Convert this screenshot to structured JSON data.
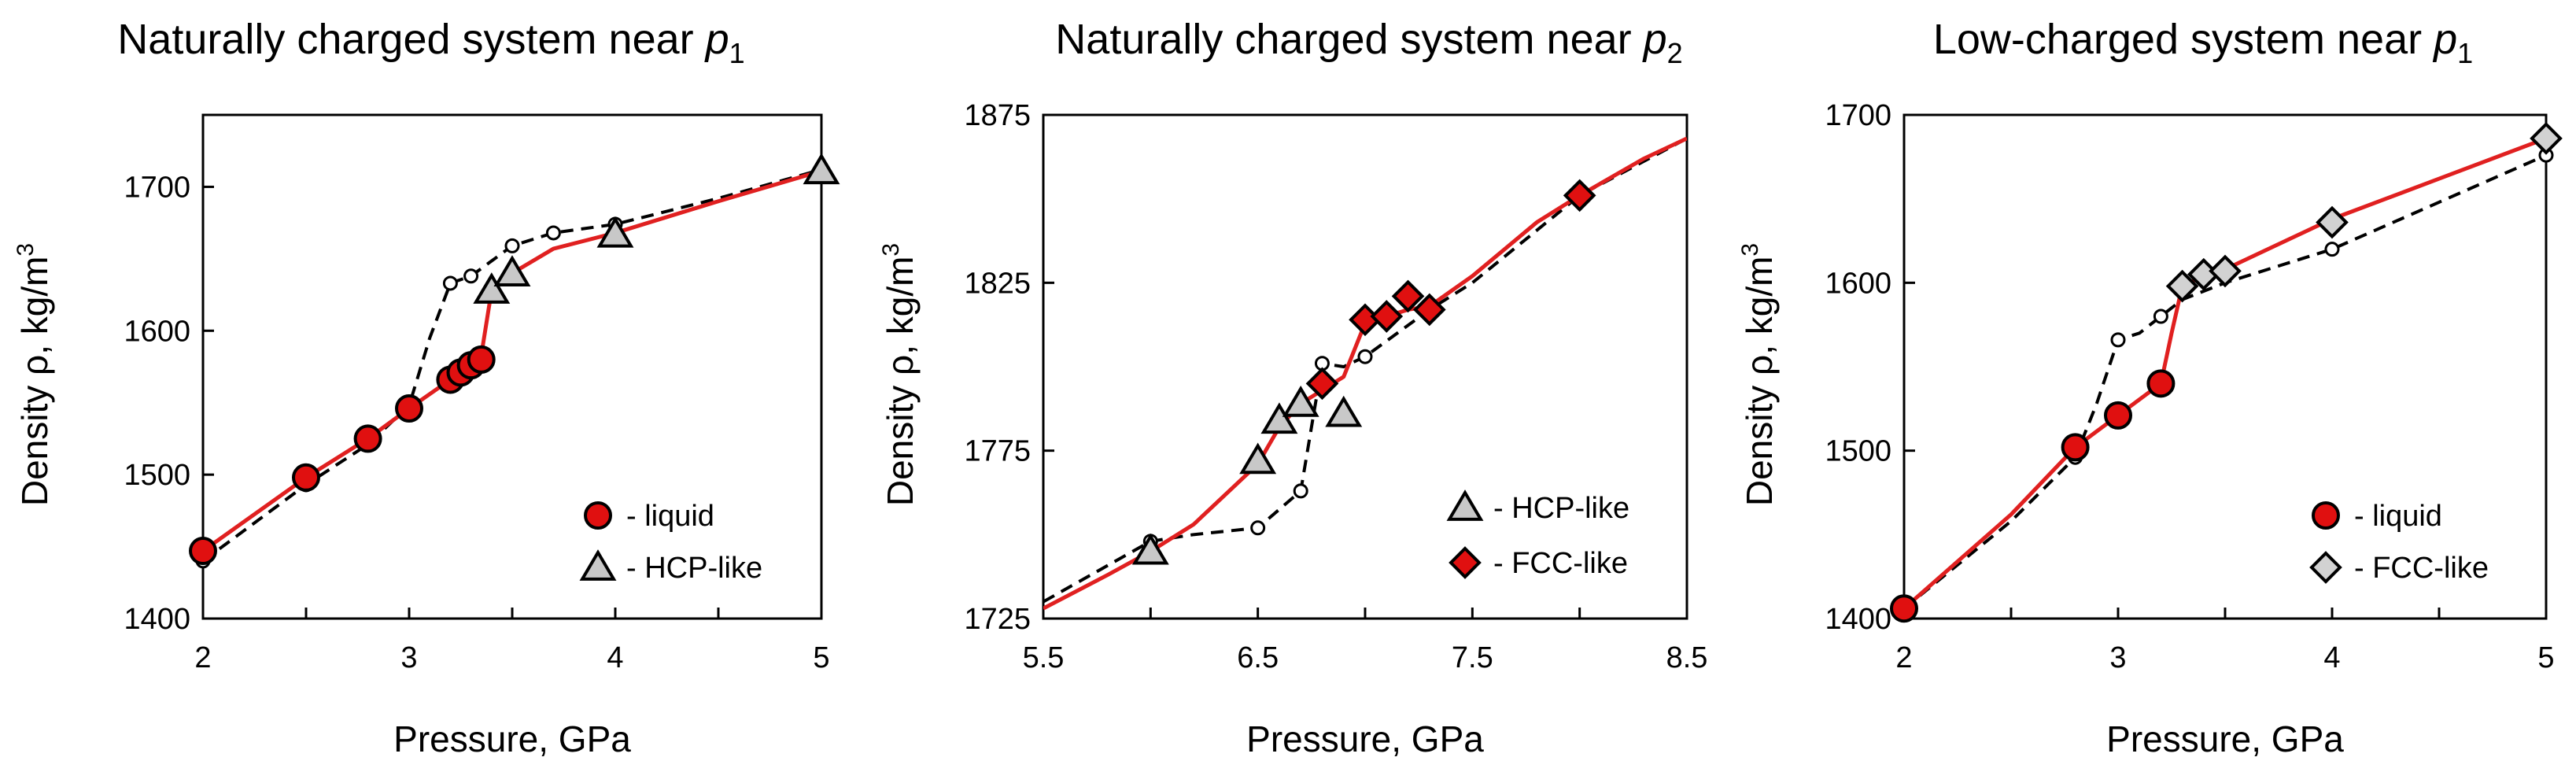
{
  "colors": {
    "fit_line": "#e02020",
    "dashed_line": "#000000",
    "liquid_marker": "#e01010",
    "hcp_marker": "#c8c8c8",
    "fcc_marker_red": "#e01010",
    "fcc_marker_gray": "#d2d2d2"
  },
  "chart_data": [
    {
      "type": "scatter",
      "title": "Naturally charged system near",
      "title_symbol": "p",
      "title_subscript": "1",
      "xlabel": "Pressure, GPa",
      "ylabel": "Density ρ, kg/m",
      "ylabel_sup": "3",
      "xlim": [
        2,
        5
      ],
      "ylim": [
        1400,
        1750
      ],
      "xticks": [
        2,
        3,
        4,
        5
      ],
      "xtick_labels": [
        "2",
        "3",
        "4",
        "5"
      ],
      "xminor": [
        2.5,
        3.5,
        4.5
      ],
      "yticks": [
        1400,
        1500,
        1600,
        1700
      ],
      "ytick_labels": [
        "1400",
        "1500",
        "1600",
        "1700"
      ],
      "legend": [
        {
          "marker": "circle",
          "color": "#e01010",
          "label": "- liquid"
        },
        {
          "marker": "triangle",
          "color": "#c8c8c8",
          "label": "- HCP-like"
        }
      ],
      "fit_line": {
        "x": [
          2,
          2.5,
          2.8,
          3.0,
          3.2,
          3.3,
          3.35,
          3.4,
          3.5,
          3.7,
          4.0,
          4.5,
          5.0
        ],
        "y": [
          1447,
          1498,
          1525,
          1546,
          1566,
          1577,
          1583,
          1628,
          1640,
          1657,
          1668,
          1690,
          1711
        ]
      },
      "dashed_line": {
        "x": [
          2,
          2.5,
          2.8,
          3.0,
          3.1,
          3.2,
          3.3,
          3.5,
          3.7,
          4.0,
          4.5,
          5.0
        ],
        "y": [
          1440,
          1493,
          1521,
          1548,
          1595,
          1633,
          1638,
          1659,
          1668,
          1674,
          1692,
          1712
        ]
      },
      "dashed_points": {
        "x": [
          2,
          2.5,
          2.8,
          3.2,
          3.3,
          3.5,
          3.7,
          4.0
        ],
        "y": [
          1440,
          1493,
          1521,
          1633,
          1638,
          1659,
          1668,
          1674
        ]
      },
      "series": [
        {
          "name": "liquid",
          "marker": "circle",
          "color": "#e01010",
          "x": [
            2,
            2.5,
            2.8,
            3.0,
            3.2,
            3.25,
            3.3,
            3.35
          ],
          "y": [
            1447,
            1498,
            1525,
            1546,
            1566,
            1571,
            1576,
            1580
          ]
        },
        {
          "name": "HCP-like",
          "marker": "triangle",
          "color": "#c8c8c8",
          "x": [
            3.4,
            3.5,
            4.0,
            5.0
          ],
          "y": [
            1628,
            1640,
            1667,
            1711
          ]
        }
      ]
    },
    {
      "type": "scatter",
      "title": "Naturally charged system near",
      "title_symbol": "p",
      "title_subscript": "2",
      "xlabel": "Pressure, GPa",
      "ylabel": "Density ρ, kg/m",
      "ylabel_sup": "3",
      "xlim": [
        5.5,
        8.5
      ],
      "ylim": [
        1725,
        1875
      ],
      "xticks": [
        5.5,
        6.5,
        7.5,
        8.5
      ],
      "xtick_labels": [
        "5.5",
        "6.5",
        "7.5",
        "8.5"
      ],
      "xminor": [
        6.0,
        7.0,
        8.0
      ],
      "yticks": [
        1725,
        1775,
        1825,
        1875
      ],
      "ytick_labels": [
        "1725",
        "1775",
        "1825",
        "1875"
      ],
      "legend": [
        {
          "marker": "triangle",
          "color": "#c8c8c8",
          "label": "- HCP-like"
        },
        {
          "marker": "diamond",
          "color": "#e01010",
          "label": "- FCC-like"
        }
      ],
      "fit_line": {
        "x": [
          5.5,
          5.8,
          6.0,
          6.2,
          6.5,
          6.6,
          6.7,
          6.8,
          6.9,
          7.0,
          7.1,
          7.2,
          7.3,
          7.5,
          7.8,
          8.0,
          8.3,
          8.5
        ],
        "y": [
          1728,
          1738,
          1745,
          1753,
          1771,
          1782,
          1789,
          1793,
          1797,
          1813,
          1815,
          1817,
          1818,
          1827,
          1843,
          1851,
          1862,
          1868
        ]
      },
      "dashed_line": {
        "x": [
          5.5,
          6.0,
          6.2,
          6.5,
          6.7,
          6.8,
          6.9,
          7.0,
          7.3,
          7.5,
          8.0,
          8.5
        ],
        "y": [
          1730,
          1748,
          1750,
          1752,
          1763,
          1801,
          1800,
          1803,
          1817,
          1825,
          1851,
          1868
        ]
      },
      "dashed_points": {
        "x": [
          6.0,
          6.5,
          6.7,
          6.8,
          7.0
        ],
        "y": [
          1748,
          1752,
          1763,
          1801,
          1803
        ]
      },
      "series": [
        {
          "name": "HCP-like",
          "marker": "triangle",
          "color": "#c8c8c8",
          "x": [
            6.0,
            6.5,
            6.6,
            6.7,
            6.9
          ],
          "y": [
            1745,
            1772,
            1784,
            1789,
            1786
          ]
        },
        {
          "name": "FCC-like",
          "marker": "diamond",
          "color": "#e01010",
          "x": [
            6.8,
            7.0,
            7.1,
            7.2,
            7.3,
            8.0
          ],
          "y": [
            1795,
            1814,
            1815,
            1821,
            1817,
            1851
          ]
        }
      ]
    },
    {
      "type": "scatter",
      "title": "Low-charged system near",
      "title_symbol": "p",
      "title_subscript": "1",
      "xlabel": "Pressure, GPa",
      "ylabel": "Density ρ, kg/m",
      "ylabel_sup": "3",
      "xlim": [
        2,
        5
      ],
      "ylim": [
        1400,
        1700
      ],
      "xticks": [
        2,
        3,
        4,
        5
      ],
      "xtick_labels": [
        "2",
        "3",
        "4",
        "5"
      ],
      "xminor": [
        2.5,
        3.5,
        4.5
      ],
      "yticks": [
        1400,
        1500,
        1600,
        1700
      ],
      "ytick_labels": [
        "1400",
        "1500",
        "1600",
        "1700"
      ],
      "legend": [
        {
          "marker": "circle",
          "color": "#e01010",
          "label": "- liquid"
        },
        {
          "marker": "diamond",
          "color": "#d2d2d2",
          "label": "- FCC-like"
        }
      ],
      "fit_line": {
        "x": [
          2,
          2.5,
          2.8,
          3.0,
          3.2,
          3.25,
          3.3,
          3.4,
          3.5,
          3.7,
          4.0,
          4.5,
          5.0
        ],
        "y": [
          1406,
          1462,
          1502,
          1521,
          1540,
          1570,
          1598,
          1604,
          1608,
          1620,
          1638,
          1662,
          1686
        ]
      },
      "dashed_line": {
        "x": [
          2,
          2.5,
          2.8,
          2.9,
          3.0,
          3.1,
          3.2,
          3.3,
          3.5,
          4.0,
          4.5,
          5.0
        ],
        "y": [
          1406,
          1458,
          1496,
          1528,
          1566,
          1570,
          1580,
          1590,
          1600,
          1620,
          1648,
          1676
        ]
      },
      "dashed_points": {
        "x": [
          2,
          2.8,
          3.0,
          3.2,
          4.0,
          5.0
        ],
        "y": [
          1406,
          1496,
          1566,
          1580,
          1620,
          1676
        ]
      },
      "series": [
        {
          "name": "liquid",
          "marker": "circle",
          "color": "#e01010",
          "x": [
            2,
            2.8,
            3.0,
            3.2
          ],
          "y": [
            1406,
            1502,
            1521,
            1540
          ]
        },
        {
          "name": "FCC-like",
          "marker": "diamond",
          "color": "#d2d2d2",
          "x": [
            3.3,
            3.4,
            3.5,
            4.0,
            5.0
          ],
          "y": [
            1598,
            1605,
            1607,
            1636,
            1686
          ]
        }
      ]
    }
  ]
}
